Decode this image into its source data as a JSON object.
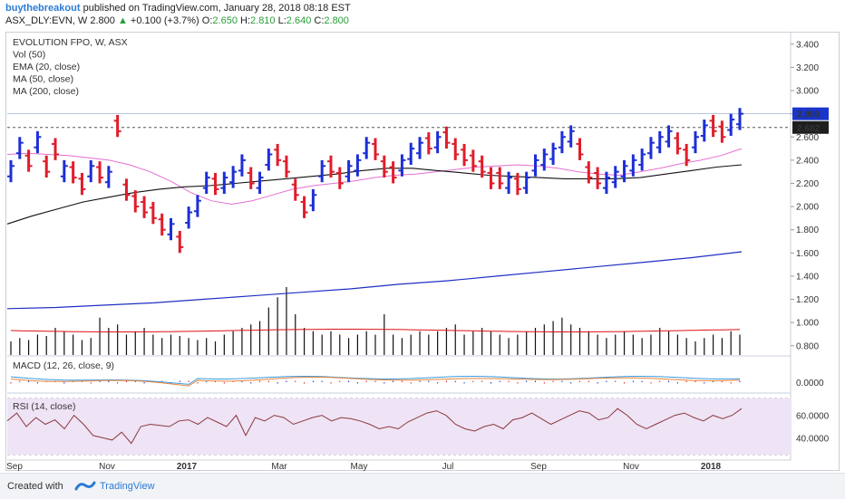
{
  "header": {
    "user": "buythebreakout",
    "published": "published on TradingView.com, January 28, 2018 08:18 EST",
    "symbol": "ASX_DLY:EVN, W",
    "last": "2.800",
    "change_arrow": "▲",
    "change": "+0.100 (+3.7%)",
    "o_label": "O:",
    "o": "2.650",
    "h_label": "H:",
    "h": "2.810",
    "l_label": "L:",
    "l": "2.640",
    "c_label": "C:",
    "c": "2.800"
  },
  "footer": {
    "created_with": "Created with",
    "brand": "TradingView"
  },
  "chart_data": {
    "type": "bar",
    "legend": [
      "EVOLUTION FPO, W, ASX",
      "Vol (50)",
      "EMA (20, close)",
      "MA (50, close)",
      "MA (200, close)"
    ],
    "price_axis": [
      "3.400",
      "3.200",
      "3.000",
      "2.800",
      "2.600",
      "2.400",
      "2.200",
      "2.000",
      "1.800",
      "1.600",
      "1.400",
      "1.200",
      "1.000",
      "0.800"
    ],
    "price_range": [
      0.72,
      3.5
    ],
    "last_price_label": "2.800",
    "dashed_level_label": "2.682",
    "dashed_level": 2.682,
    "date_labels": [
      "Sep",
      "Nov",
      "2017",
      "Mar",
      "May",
      "Jul",
      "Sep",
      "Nov",
      "2018"
    ],
    "ohlc_close": [
      2.35,
      2.55,
      2.35,
      2.6,
      2.3,
      2.45,
      2.35,
      2.25,
      2.15,
      2.35,
      2.25,
      2.3,
      2.65,
      2.1,
      2.0,
      1.95,
      1.9,
      1.8,
      1.85,
      1.65,
      1.95,
      2.05,
      2.25,
      2.15,
      2.25,
      2.3,
      2.4,
      2.2,
      2.25,
      2.45,
      2.4,
      2.3,
      2.1,
      1.95,
      2.1,
      2.35,
      2.3,
      2.2,
      2.35,
      2.4,
      2.55,
      2.45,
      2.3,
      2.25,
      2.4,
      2.5,
      2.55,
      2.5,
      2.6,
      2.55,
      2.45,
      2.4,
      2.35,
      2.3,
      2.2,
      2.2,
      2.25,
      2.15,
      2.25,
      2.4,
      2.45,
      2.5,
      2.6,
      2.65,
      2.45,
      2.25,
      2.2,
      2.25,
      2.3,
      2.35,
      2.4,
      2.45,
      2.55,
      2.6,
      2.65,
      2.5,
      2.4,
      2.6,
      2.7,
      2.65,
      2.6,
      2.75,
      2.8
    ],
    "ohlc_dir": [
      1,
      1,
      0,
      1,
      0,
      0,
      1,
      0,
      0,
      1,
      0,
      1,
      0,
      0,
      0,
      0,
      0,
      0,
      1,
      0,
      1,
      1,
      1,
      0,
      1,
      1,
      1,
      0,
      1,
      1,
      0,
      0,
      0,
      0,
      1,
      1,
      0,
      0,
      1,
      1,
      1,
      0,
      0,
      0,
      1,
      1,
      1,
      0,
      1,
      0,
      0,
      0,
      0,
      0,
      0,
      0,
      1,
      0,
      1,
      1,
      1,
      1,
      1,
      1,
      0,
      0,
      0,
      1,
      1,
      1,
      1,
      1,
      1,
      1,
      1,
      0,
      0,
      1,
      1,
      0,
      0,
      1,
      1
    ],
    "ema20": [
      2.45,
      2.46,
      2.45,
      2.44,
      2.42,
      2.4,
      2.36,
      2.3,
      2.22,
      2.12,
      2.05,
      2.02,
      2.05,
      2.1,
      2.15,
      2.18,
      2.2,
      2.22,
      2.25,
      2.27,
      2.28,
      2.3,
      2.32,
      2.34,
      2.35,
      2.36,
      2.35,
      2.33,
      2.3,
      2.28,
      2.27,
      2.3,
      2.33,
      2.37,
      2.4,
      2.44,
      2.5
    ],
    "ma50": [
      1.85,
      1.92,
      1.98,
      2.04,
      2.08,
      2.12,
      2.15,
      2.17,
      2.18,
      2.2,
      2.22,
      2.24,
      2.26,
      2.28,
      2.31,
      2.33,
      2.33,
      2.31,
      2.29,
      2.27,
      2.26,
      2.25,
      2.24,
      2.24,
      2.24,
      2.25,
      2.28,
      2.31,
      2.34,
      2.36
    ],
    "ma200": [
      1.12,
      1.13,
      1.15,
      1.17,
      1.2,
      1.23,
      1.26,
      1.29,
      1.33,
      1.36,
      1.4,
      1.44,
      1.48,
      1.52,
      1.56,
      1.61
    ],
    "volume": [
      0.2,
      0.25,
      0.22,
      0.3,
      0.28,
      0.4,
      0.35,
      0.3,
      0.22,
      0.25,
      0.55,
      0.4,
      0.45,
      0.3,
      0.35,
      0.4,
      0.3,
      0.25,
      0.3,
      0.28,
      0.25,
      0.22,
      0.25,
      0.2,
      0.3,
      0.35,
      0.4,
      0.45,
      0.5,
      0.7,
      0.85,
      1.0,
      0.6,
      0.4,
      0.35,
      0.3,
      0.35,
      0.3,
      0.25,
      0.3,
      0.35,
      0.3,
      0.6,
      0.3,
      0.25,
      0.3,
      0.35,
      0.3,
      0.35,
      0.4,
      0.45,
      0.3,
      0.35,
      0.4,
      0.35,
      0.3,
      0.25,
      0.3,
      0.35,
      0.4,
      0.45,
      0.5,
      0.55,
      0.45,
      0.4,
      0.35,
      0.3,
      0.25,
      0.3,
      0.35,
      0.3,
      0.25,
      0.3,
      0.4,
      0.35,
      0.3,
      0.25,
      0.2,
      0.25,
      0.3,
      0.25,
      0.35,
      0.3
    ],
    "macd": {
      "label": "MACD (12, 26, close, 9)",
      "axis": "0.0000"
    },
    "rsi": {
      "label": "RSI (14, close)",
      "axis": [
        "60.0000",
        "40.0000"
      ],
      "values": [
        55,
        62,
        50,
        58,
        52,
        56,
        48,
        60,
        52,
        42,
        40,
        38,
        45,
        35,
        50,
        52,
        51,
        50,
        55,
        56,
        52,
        58,
        54,
        50,
        60,
        42,
        58,
        55,
        60,
        58,
        52,
        55,
        58,
        60,
        55,
        58,
        57,
        55,
        52,
        48,
        50,
        48,
        54,
        58,
        62,
        64,
        60,
        52,
        48,
        46,
        50,
        52,
        48,
        56,
        58,
        62,
        57,
        52,
        56,
        60,
        64,
        62,
        56,
        58,
        66,
        60,
        52,
        48,
        52,
        56,
        60,
        62,
        58,
        55,
        60,
        57,
        60,
        66
      ]
    }
  }
}
